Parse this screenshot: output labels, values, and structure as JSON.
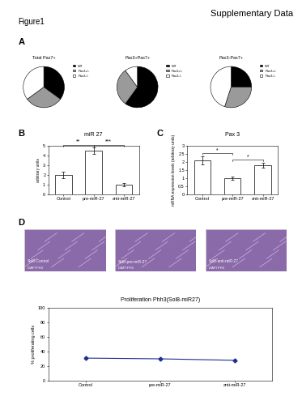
{
  "header": {
    "title": "Supplementary Data",
    "figure": "Figure1"
  },
  "chart_data": [
    {
      "type": "pie",
      "panel": "A",
      "title": "Total Pax7+",
      "categories": [
        "WT",
        "Pax3+/-",
        "Pax3-/-"
      ],
      "values": [
        35,
        30,
        35
      ],
      "colors": [
        "#000000",
        "#9a9a9a",
        "#ffffff"
      ],
      "legend": "upper left"
    },
    {
      "type": "pie",
      "title": "Pax3+Pax7+",
      "categories": [
        "WT",
        "Pax3+/-",
        "Pax3-/-"
      ],
      "values": [
        60,
        30,
        10
      ],
      "colors": [
        "#000000",
        "#9a9a9a",
        "#ffffff"
      ],
      "legend": "upper left"
    },
    {
      "type": "pie",
      "title": "Pax3-Pax7+",
      "categories": [
        "WT",
        "Pax3+/-",
        "Pax3-/-"
      ],
      "values": [
        25,
        30,
        45
      ],
      "colors": [
        "#000000",
        "#9a9a9a",
        "#ffffff"
      ],
      "legend": "upper left"
    },
    {
      "type": "bar",
      "panel": "B",
      "title": "miR 27",
      "y_label": "arbitrary units",
      "categories": [
        "Control",
        "pre-miR-27",
        "anti-miR-27"
      ],
      "values": [
        2.0,
        4.5,
        1.0
      ],
      "errors": [
        0.3,
        0.3,
        0.15
      ],
      "color": "#ffffff",
      "ylim": [
        0,
        5
      ],
      "yticks": [
        0,
        1,
        2,
        3,
        4,
        5
      ],
      "significance": [
        {
          "from": "Control",
          "to": "pre-miR-27",
          "label": "**"
        },
        {
          "from": "pre-miR-27",
          "to": "anti-miR-27",
          "label": "***"
        }
      ]
    },
    {
      "type": "bar",
      "panel": "C",
      "title": "Pax 3",
      "y_label": "mRNA expression levels (arbitrary units)",
      "categories": [
        "Control",
        "pre-miR-27",
        "anti-miR-27"
      ],
      "values": [
        2.1,
        1.0,
        1.8
      ],
      "errors": [
        0.25,
        0.1,
        0.15
      ],
      "color": "#ffffff",
      "ylim": [
        0,
        3
      ],
      "yticks": [
        0,
        0.5,
        1,
        1.5,
        2,
        2.5,
        3
      ],
      "significance": [
        {
          "from": "Control",
          "to": "pre-miR-27",
          "label": "*"
        },
        {
          "from": "pre-miR-27",
          "to": "anti-miR-27",
          "label": "*"
        }
      ]
    },
    {
      "type": "line",
      "title": "Proliferation Phh3(Sol8-miR27)",
      "y_label": "% proliferating cells",
      "categories": [
        "Control",
        "pre-miR-27",
        "anti-miR-27"
      ],
      "values": [
        31,
        30,
        28
      ],
      "color": "#1f2f8f",
      "marker": "diamond",
      "ylim": [
        0,
        100
      ],
      "yticks": [
        0,
        20,
        40,
        60,
        80,
        100
      ]
    }
  ],
  "images": {
    "panel": "D",
    "items": [
      {
        "label": "Sol8-Control",
        "stain": "DAPI PH3"
      },
      {
        "label": "Sol8-pre-miR-27",
        "stain": "DAPI PH3"
      },
      {
        "label": "Sol8-anti-miR-27",
        "stain": "DAPI PH3"
      }
    ]
  }
}
